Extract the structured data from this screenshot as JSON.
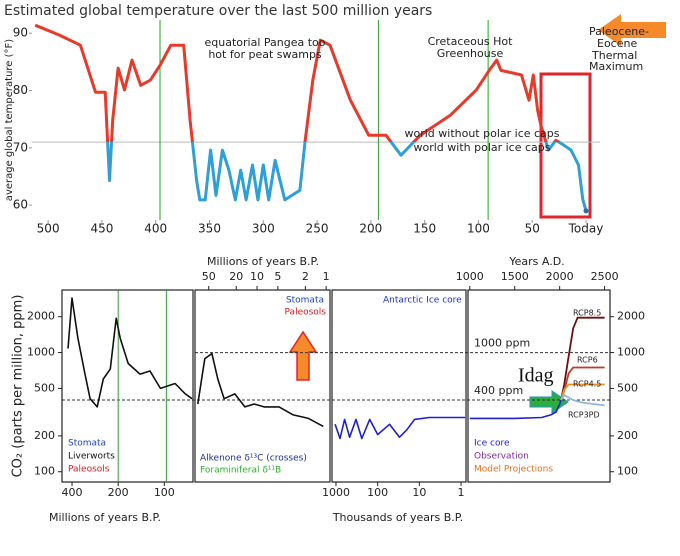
{
  "chart_data": [
    {
      "type": "line",
      "title": "Estimated global temperature over the last 500 million years",
      "y_label": "average global temperature (°F)",
      "x": [
        512,
        490,
        470,
        456,
        447,
        443,
        440,
        435,
        429,
        422,
        414,
        405,
        396,
        386,
        374,
        368,
        362,
        359,
        354,
        349,
        344,
        338,
        332,
        326,
        321,
        316,
        310,
        305,
        300,
        295,
        289,
        280,
        266,
        261,
        254,
        247,
        238,
        219,
        202,
        186,
        172,
        154,
        126,
        102,
        90,
        83,
        79,
        60,
        53,
        49,
        45,
        42,
        35,
        28,
        21,
        14,
        7,
        3,
        0
      ],
      "values": [
        91.4,
        89.7,
        87.9,
        79.7,
        79.7,
        64.3,
        74.8,
        83.9,
        80.1,
        85.3,
        80.9,
        81.8,
        84.4,
        87.9,
        87.9,
        74.8,
        64.3,
        60.9,
        60.9,
        69.6,
        61.7,
        69.6,
        66.1,
        60.9,
        66.1,
        60.9,
        67.0,
        60.9,
        67.0,
        60.9,
        67.8,
        60.9,
        62.6,
        71.3,
        81.8,
        88.8,
        87.9,
        78.3,
        72.2,
        72.2,
        68.7,
        72.2,
        75.7,
        80.1,
        83.5,
        85.3,
        83.5,
        82.7,
        78.3,
        82.7,
        76.6,
        74.0,
        69.6,
        71.3,
        70.5,
        69.6,
        67.0,
        61.0,
        59.0
      ],
      "color_above": "#e8392a",
      "color_below": "#2f9fd8",
      "reference_line": 71,
      "reference_color": "#bbbbbb",
      "vlines": [
        396,
        193,
        91
      ],
      "vline_color": "#2ca02c",
      "xlim": [
        515,
        -13
      ],
      "ylim": [
        57.4,
        92.3
      ],
      "xticks": [
        500,
        450,
        400,
        350,
        300,
        250,
        200,
        150,
        100,
        50,
        {
          "value": 0,
          "label": "Today"
        }
      ],
      "yticks": [
        60,
        70,
        80,
        90
      ],
      "annotations": [
        "equatorial Pangea too",
        "hot for peat swamps",
        "Cretaceous Hot",
        "Greenhouse",
        "Paleocene-",
        "Eocene",
        "Thermal",
        "Maximum",
        "world without polar ice caps",
        "world with polar ice caps"
      ]
    },
    {
      "type": "line",
      "log_y": true,
      "y_label": "CO₂ (parts per million, ppm)",
      "ylim": [
        82,
        3350
      ],
      "yticks": [
        100,
        200,
        500,
        1000,
        2000
      ],
      "reference_lines": [
        {
          "value": 1000,
          "label": "1000 ppm"
        },
        {
          "value": 400,
          "label": "400 ppm"
        }
      ],
      "annotation": "Idag",
      "panels": [
        {
          "xlabel": "Millions of years B.P.",
          "xscale": "log",
          "xaxis_position": "bottom",
          "xlim": [
            465,
            65
          ],
          "xticks": [
            400,
            200,
            100
          ],
          "vlines": [
            200,
            97
          ],
          "vline_color": "#2ca02c",
          "x": [
            425,
            400,
            366,
            329,
            305,
            274,
            250,
            225,
            206,
            194,
            172,
            144,
            124,
            106,
            85,
            73,
            66
          ],
          "values": [
            1080,
            2870,
            1320,
            660,
            410,
            350,
            600,
            730,
            1940,
            1320,
            810,
            660,
            700,
            500,
            550,
            450,
            410
          ],
          "color": "#111111",
          "labels": [
            {
              "text": "Stomata",
              "color": "#1f3fbf"
            },
            {
              "text": "Liverworts",
              "color": "#111111"
            },
            {
              "text": "Paleosols",
              "color": "#d02020"
            }
          ]
        },
        {
          "xlabel": "Millions of years B.P.",
          "xscale": "log",
          "xaxis_position": "top",
          "xlim": [
            79,
            0.88
          ],
          "xticks": [
            50,
            20,
            10,
            5,
            2,
            1
          ],
          "x": [
            72,
            57,
            45,
            37,
            30,
            21,
            15,
            11,
            7.9,
            4.8,
            3.0,
            1.8,
            1.1
          ],
          "values": [
            370,
            890,
            980,
            600,
            410,
            450,
            350,
            370,
            350,
            350,
            300,
            280,
            240
          ],
          "color": "#111111",
          "labels": [
            {
              "text": "Alkenone δ¹³C (crosses)",
              "color": "#1f2f8f"
            },
            {
              "text": "Foraminiferal δ¹¹B",
              "color": "#2cb02c"
            },
            {
              "text": "Stomata",
              "color": "#1f3fbf"
            },
            {
              "text": "Paleosols",
              "color": "#d02020"
            }
          ]
        },
        {
          "xlabel": "Thousands of years B.P.",
          "xscale": "log",
          "xaxis_position": "bottom",
          "xlim": [
            1245,
            0.76
          ],
          "xticks": [
            1000,
            100,
            10,
            1
          ],
          "x": [
            1050,
            800,
            620,
            470,
            330,
            240,
            155,
            100,
            52,
            30,
            20,
            13,
            5.8,
            2.5,
            0.8
          ],
          "values": [
            250,
            190,
            275,
            195,
            275,
            190,
            275,
            205,
            250,
            195,
            225,
            275,
            285,
            285,
            285
          ],
          "color": "#2020d0",
          "labels": [
            {
              "text": "Antarctic Ice core",
              "color": "#1f2fbf"
            }
          ]
        },
        {
          "xlabel": "Years A.D.",
          "xscale": "linear",
          "xaxis_position": "top",
          "xlim": [
            980,
            2560
          ],
          "xticks": [
            1000,
            1500,
            2000,
            2500
          ],
          "x": [
            1000,
            1500,
            1800,
            1900,
            1960,
            2000,
            2015
          ],
          "values": [
            280,
            280,
            285,
            300,
            317,
            370,
            400
          ],
          "color": "#2020d0",
          "series": [
            {
              "name": "RCP8.5",
              "color": "#6b0f0f",
              "x": [
                2015,
                2050,
                2100,
                2150,
                2200,
                2250,
                2500
              ],
              "values": [
                400,
                540,
                936,
                1600,
                1960,
                1960,
                1960
              ]
            },
            {
              "name": "RCP6",
              "color": "#c0392b",
              "x": [
                2015,
                2050,
                2100,
                2150,
                2200,
                2250,
                2500
              ],
              "values": [
                400,
                480,
                670,
                750,
                750,
                750,
                750
              ]
            },
            {
              "name": "RCP4.5",
              "color": "#e89020",
              "x": [
                2015,
                2050,
                2100,
                2150,
                2200,
                2250,
                2500
              ],
              "values": [
                400,
                490,
                540,
                540,
                540,
                540,
                540
              ]
            },
            {
              "name": "RCP3PD",
              "color": "#8fb8e0",
              "x": [
                2015,
                2050,
                2100,
                2150,
                2200,
                2250,
                2500
              ],
              "values": [
                400,
                440,
                420,
                400,
                390,
                380,
                360
              ]
            }
          ],
          "labels": [
            {
              "text": "Ice core",
              "color": "#2020d0"
            },
            {
              "text": "Observation",
              "color": "#7a2a9a"
            },
            {
              "text": "Model Projections",
              "color": "#e07020"
            }
          ]
        }
      ]
    }
  ]
}
